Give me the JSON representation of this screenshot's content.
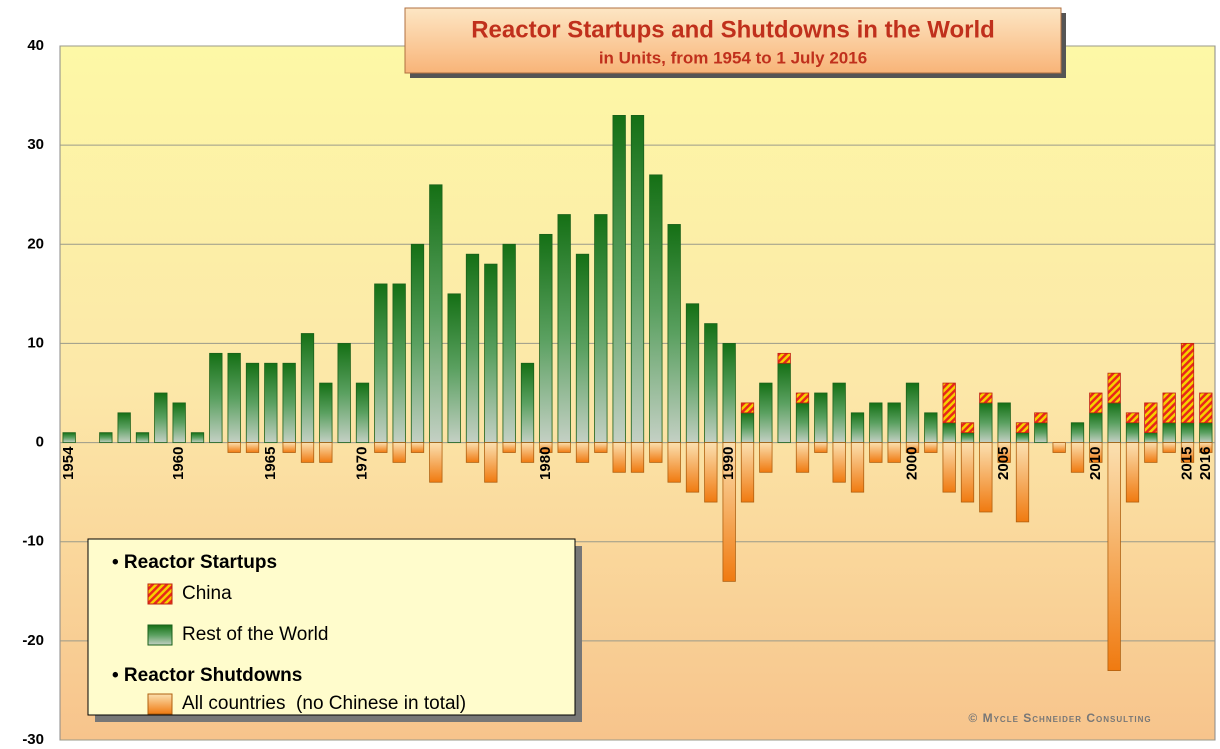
{
  "chart_data": {
    "type": "bar",
    "title": "Reactor Startups and Shutdowns in the World",
    "subtitle": "in Units, from 1954 to 1 July 2016",
    "categories": [
      "1954",
      null,
      null,
      null,
      null,
      null,
      "1960",
      null,
      null,
      null,
      null,
      "1965",
      null,
      null,
      null,
      null,
      "1970",
      null,
      null,
      null,
      null,
      null,
      null,
      null,
      null,
      null,
      "1980",
      null,
      null,
      null,
      null,
      null,
      null,
      null,
      null,
      null,
      "1990",
      null,
      null,
      null,
      null,
      null,
      null,
      null,
      null,
      null,
      "2000",
      null,
      null,
      null,
      null,
      "2005",
      null,
      null,
      null,
      null,
      "2010",
      null,
      null,
      null,
      null,
      "2015",
      "2016"
    ],
    "series": [
      {
        "name": "Rest of the World",
        "color": "#2e8b2e",
        "stack": "startups",
        "values": [
          1,
          0,
          1,
          3,
          1,
          5,
          4,
          1,
          9,
          9,
          8,
          8,
          8,
          11,
          6,
          10,
          6,
          16,
          16,
          20,
          26,
          15,
          19,
          18,
          20,
          8,
          21,
          23,
          19,
          23,
          33,
          33,
          27,
          22,
          14,
          12,
          10,
          3,
          6,
          8,
          4,
          5,
          6,
          3,
          4,
          4,
          6,
          3,
          2,
          1,
          4,
          4,
          1,
          2,
          0,
          2,
          3,
          4,
          2,
          1,
          2,
          2,
          2
        ]
      },
      {
        "name": "China",
        "color": "#e8401c",
        "stack": "startups",
        "values": [
          0,
          0,
          0,
          0,
          0,
          0,
          0,
          0,
          0,
          0,
          0,
          0,
          0,
          0,
          0,
          0,
          0,
          0,
          0,
          0,
          0,
          0,
          0,
          0,
          0,
          0,
          0,
          0,
          0,
          0,
          0,
          0,
          0,
          0,
          0,
          0,
          0,
          1,
          0,
          1,
          1,
          0,
          0,
          0,
          0,
          0,
          0,
          0,
          4,
          1,
          1,
          0,
          1,
          1,
          0,
          0,
          2,
          3,
          1,
          3,
          3,
          8,
          3
        ]
      },
      {
        "name": "All countries  (no Chinese in total)",
        "color": "#f08a1c",
        "stack": "shutdowns",
        "values": [
          0,
          0,
          0,
          0,
          0,
          0,
          0,
          0,
          0,
          -1,
          -1,
          0,
          -1,
          -2,
          -2,
          0,
          0,
          -1,
          -2,
          -1,
          -4,
          0,
          -2,
          -4,
          -1,
          -2,
          -1,
          -1,
          -2,
          -1,
          -3,
          -3,
          -2,
          -4,
          -5,
          -6,
          -14,
          -6,
          -3,
          0,
          -3,
          -1,
          -4,
          -5,
          -2,
          -2,
          -1,
          -1,
          -5,
          -6,
          -7,
          -2,
          -8,
          0,
          -1,
          -3,
          -2,
          -23,
          -6,
          -2,
          -1,
          -2,
          -1
        ]
      }
    ],
    "legend_headings": [
      "• Reactor Startups",
      "• Reactor Shutdowns"
    ],
    "copyright": "© Mycle Schneider Consulting",
    "ylim": [
      -30,
      40
    ],
    "yticks": [
      -30,
      -20,
      -10,
      0,
      10,
      20,
      30,
      40
    ],
    "grid": true
  }
}
